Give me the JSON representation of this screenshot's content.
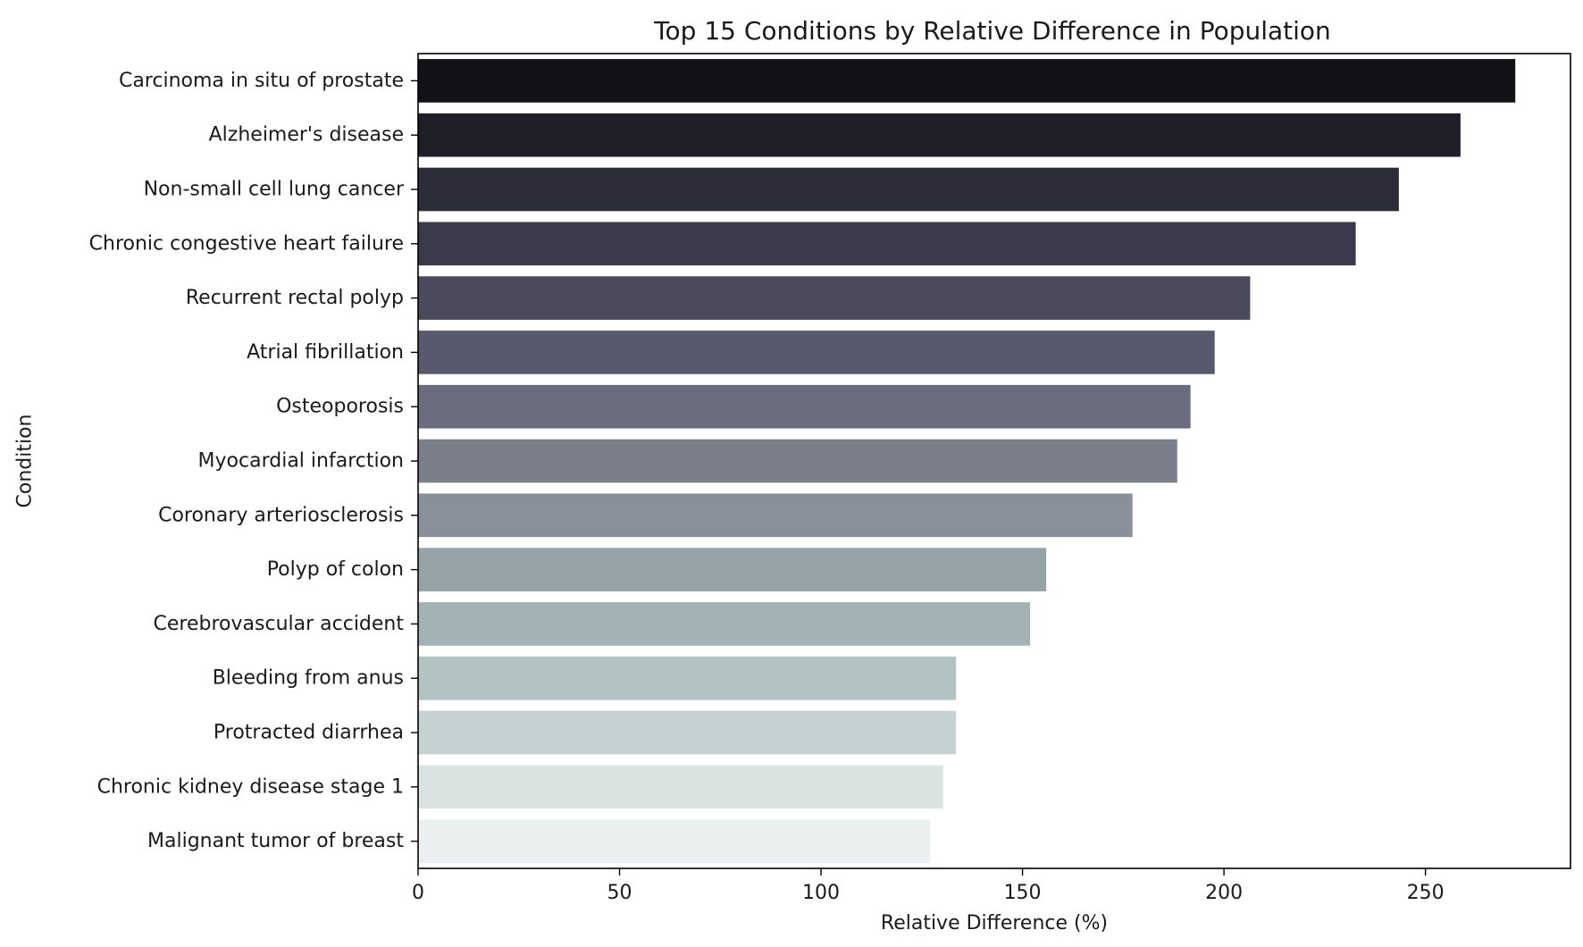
{
  "chart_data": {
    "type": "bar",
    "orientation": "horizontal",
    "title": "Top 15 Conditions by Relative Difference in Population",
    "xlabel": "Relative Difference (%)",
    "ylabel": "Condition",
    "xlim": [
      0,
      286
    ],
    "xticks": [
      0,
      50,
      100,
      150,
      200,
      250
    ],
    "grid": false,
    "categories": [
      "Carcinoma in situ of prostate",
      "Alzheimer's disease",
      "Non-small cell lung cancer",
      "Chronic congestive heart failure",
      "Recurrent rectal polyp",
      "Atrial fibrillation",
      "Osteoporosis",
      "Myocardial infarction",
      "Coronary arteriosclerosis",
      "Polyp of colon",
      "Cerebrovascular accident",
      "Bleeding from anus",
      "Protracted diarrhea",
      "Chronic kidney disease stage 1",
      "Malignant tumor of breast"
    ],
    "values": [
      272.3,
      258.7,
      243.4,
      232.7,
      206.5,
      197.7,
      191.7,
      188.4,
      177.3,
      155.9,
      151.9,
      133.5,
      133.5,
      130.3,
      127.1
    ],
    "colors": [
      "#121217",
      "#1f1f29",
      "#2d2d39",
      "#3b3a4a",
      "#4a4a5c",
      "#59596d",
      "#6b6c7e",
      "#7b7f8c",
      "#889199",
      "#95a2a7",
      "#a3b2b4",
      "#b3c3c3",
      "#c5d2d1",
      "#dbe2e2",
      "#eaf0ef"
    ]
  }
}
